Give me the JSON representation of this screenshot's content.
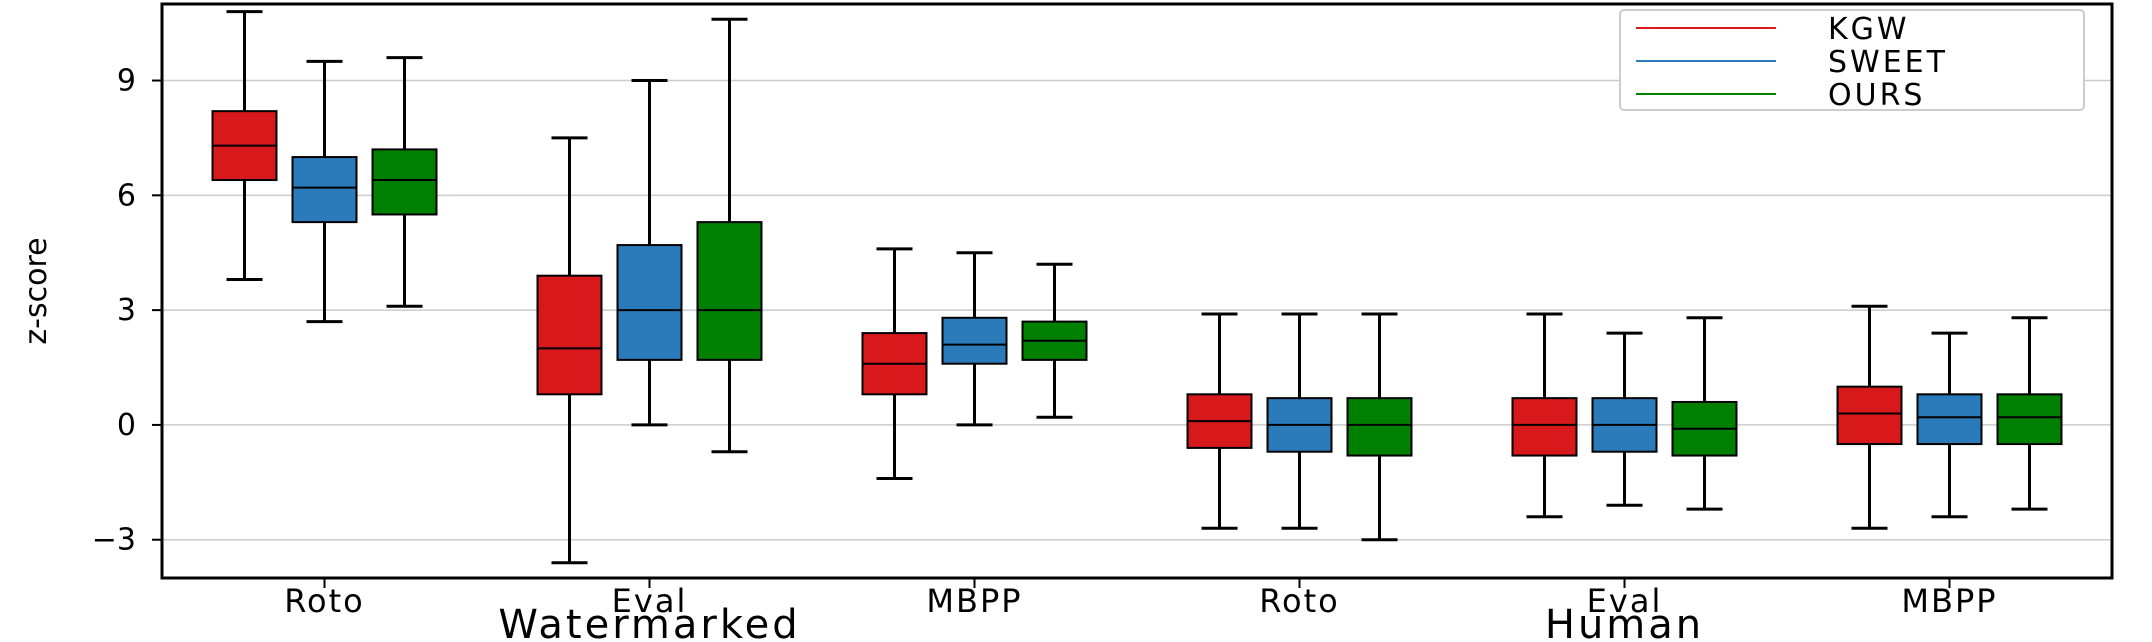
{
  "chart_data": {
    "type": "boxplot",
    "title": "",
    "xlabel": "",
    "ylabel": "z-score",
    "ylim": [
      -4,
      11
    ],
    "yticks": [
      -3,
      0,
      3,
      6,
      9
    ],
    "ytick_labels": [
      "−3",
      "0",
      "3",
      "6",
      "9"
    ],
    "grid": "horizontal",
    "legend_position": "top-right",
    "categories": [
      "Roto",
      "Eval",
      "MBPP",
      "Roto",
      "Eval",
      "MBPP"
    ],
    "groups": [
      {
        "label": "Watermarked",
        "category_indices": [
          0,
          1,
          2
        ]
      },
      {
        "label": "Human",
        "category_indices": [
          3,
          4,
          5
        ]
      }
    ],
    "series": [
      {
        "name": "KGW",
        "color": "#d7191c",
        "boxes": [
          {
            "whislo": 3.8,
            "q1": 6.4,
            "med": 7.3,
            "q3": 8.2,
            "whishi": 10.8
          },
          {
            "whislo": -3.6,
            "q1": 0.8,
            "med": 2.0,
            "q3": 3.9,
            "whishi": 7.5
          },
          {
            "whislo": -1.4,
            "q1": 0.8,
            "med": 1.6,
            "q3": 2.4,
            "whishi": 4.6
          },
          {
            "whislo": -2.7,
            "q1": -0.6,
            "med": 0.1,
            "q3": 0.8,
            "whishi": 2.9
          },
          {
            "whislo": -2.4,
            "q1": -0.8,
            "med": 0.0,
            "q3": 0.7,
            "whishi": 2.9
          },
          {
            "whislo": -2.7,
            "q1": -0.5,
            "med": 0.3,
            "q3": 1.0,
            "whishi": 3.1
          }
        ]
      },
      {
        "name": "SWEET",
        "color": "#2b7bba",
        "boxes": [
          {
            "whislo": 2.7,
            "q1": 5.3,
            "med": 6.2,
            "q3": 7.0,
            "whishi": 9.5
          },
          {
            "whislo": 0.0,
            "q1": 1.7,
            "med": 3.0,
            "q3": 4.7,
            "whishi": 9.0
          },
          {
            "whislo": 0.0,
            "q1": 1.6,
            "med": 2.1,
            "q3": 2.8,
            "whishi": 4.5
          },
          {
            "whislo": -2.7,
            "q1": -0.7,
            "med": 0.0,
            "q3": 0.7,
            "whishi": 2.9
          },
          {
            "whislo": -2.1,
            "q1": -0.7,
            "med": 0.0,
            "q3": 0.7,
            "whishi": 2.4
          },
          {
            "whislo": -2.4,
            "q1": -0.5,
            "med": 0.2,
            "q3": 0.8,
            "whishi": 2.4
          }
        ]
      },
      {
        "name": "OURS",
        "color": "#008000",
        "boxes": [
          {
            "whislo": 3.1,
            "q1": 5.5,
            "med": 6.4,
            "q3": 7.2,
            "whishi": 9.6
          },
          {
            "whislo": -0.7,
            "q1": 1.7,
            "med": 3.0,
            "q3": 5.3,
            "whishi": 10.6
          },
          {
            "whislo": 0.2,
            "q1": 1.7,
            "med": 2.2,
            "q3": 2.7,
            "whishi": 4.2
          },
          {
            "whislo": -3.0,
            "q1": -0.8,
            "med": 0.0,
            "q3": 0.7,
            "whishi": 2.9
          },
          {
            "whislo": -2.2,
            "q1": -0.8,
            "med": -0.1,
            "q3": 0.6,
            "whishi": 2.8
          },
          {
            "whislo": -2.2,
            "q1": -0.5,
            "med": 0.2,
            "q3": 0.8,
            "whishi": 2.8
          }
        ]
      }
    ]
  }
}
